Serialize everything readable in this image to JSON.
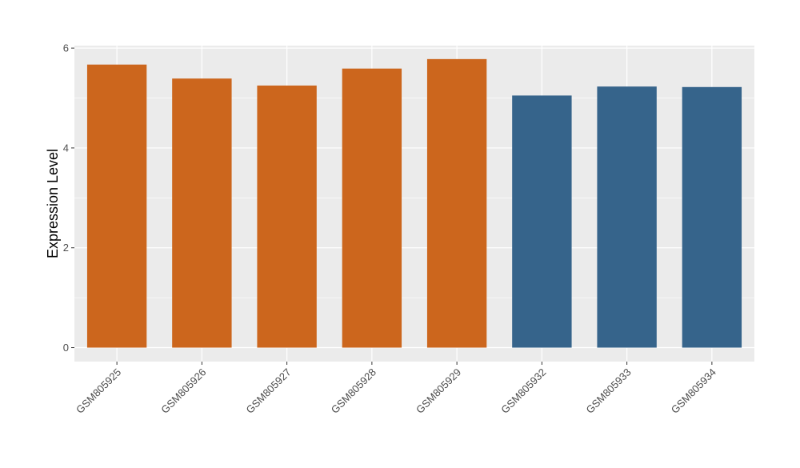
{
  "chart_data": {
    "type": "bar",
    "categories": [
      "GSM805925",
      "GSM805926",
      "GSM805927",
      "GSM805928",
      "GSM805929",
      "GSM805932",
      "GSM805933",
      "GSM805934"
    ],
    "values": [
      5.67,
      5.39,
      5.25,
      5.59,
      5.78,
      5.05,
      5.23,
      5.22
    ],
    "bar_colors": [
      "#cc661d",
      "#cc661d",
      "#cc661d",
      "#cc661d",
      "#cc661d",
      "#36648b",
      "#36648b",
      "#36648b"
    ],
    "title": "",
    "xlabel": "",
    "ylabel": "Expression Level",
    "ylim": [
      -0.28,
      6.05
    ],
    "yticks": [
      0,
      2,
      4,
      6
    ],
    "ytick_labels": [
      "0",
      "2",
      "4",
      "6"
    ],
    "grid": true,
    "panel_background": "#ebebeb",
    "grid_color": "#ffffff"
  }
}
